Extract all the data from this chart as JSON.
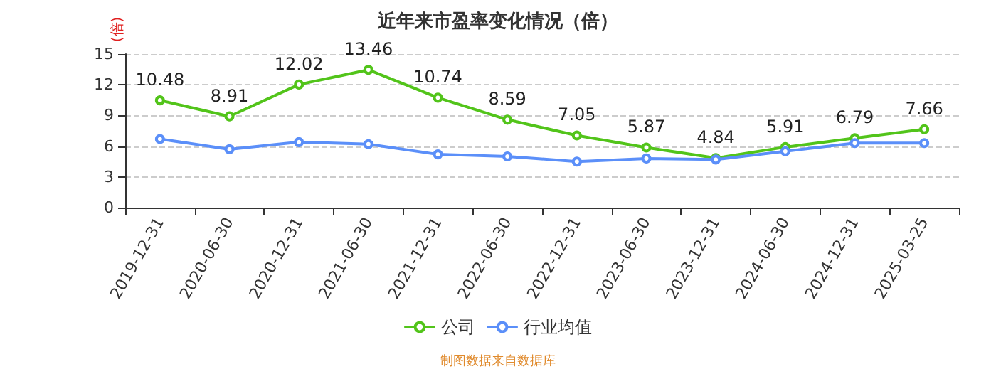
{
  "chart_data": {
    "type": "line",
    "title": "近年来市盈率变化情况（倍）",
    "ylabel": "(倍)",
    "categories": [
      "2019-12-31",
      "2020-06-30",
      "2020-12-31",
      "2021-06-30",
      "2021-12-31",
      "2022-06-30",
      "2022-12-31",
      "2023-06-30",
      "2023-12-31",
      "2024-06-30",
      "2024-12-31",
      "2025-03-25"
    ],
    "series": [
      {
        "name": "公司",
        "color": "#52c41a",
        "values": [
          10.48,
          8.91,
          12.02,
          13.46,
          10.74,
          8.59,
          7.05,
          5.87,
          4.84,
          5.91,
          6.79,
          7.66
        ],
        "value_labels": [
          "10.48",
          "8.91",
          "12.02",
          "13.46",
          "10.74",
          "8.59",
          "7.05",
          "5.87",
          "4.84",
          "5.91",
          "6.79",
          "7.66"
        ]
      },
      {
        "name": "行业均值",
        "color": "#5b8ff9",
        "values": [
          6.7,
          5.7,
          6.4,
          6.2,
          5.2,
          5.0,
          4.5,
          4.8,
          4.7,
          5.5,
          6.3,
          6.3
        ]
      }
    ],
    "ylim": [
      0,
      15
    ],
    "yticks": [
      0,
      3,
      6,
      9,
      12,
      15
    ],
    "grid": "y",
    "legend": "bottom",
    "marker": "circle",
    "line_style": "solid",
    "annotations": [
      "制图数据来自数据库"
    ]
  }
}
